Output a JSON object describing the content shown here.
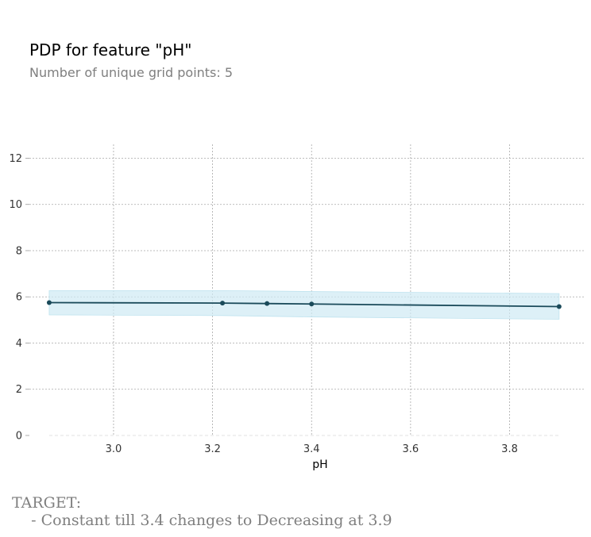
{
  "title": "PDP for feature \"pH\"",
  "subtitle": "Number of unique grid points: 5",
  "note": {
    "heading": "TARGET:",
    "line": "    - Constant till 3.4 changes to Decreasing at 3.9"
  },
  "chart_data": {
    "type": "line",
    "title": "PDP for feature \"pH\"",
    "xlabel": "pH",
    "ylabel": "",
    "xlim": [
      2.83,
      3.95
    ],
    "ylim": [
      0,
      12.6
    ],
    "xticks": [
      3.0,
      3.2,
      3.4,
      3.6,
      3.8
    ],
    "xtick_labels": [
      "3.0",
      "3.2",
      "3.4",
      "3.6",
      "3.8"
    ],
    "yticks": [
      0,
      2,
      4,
      6,
      8,
      10,
      12
    ],
    "ytick_labels": [
      "0",
      "2",
      "4",
      "6",
      "8",
      "10",
      "12"
    ],
    "grid": true,
    "series": [
      {
        "x": [
          2.87,
          3.22,
          3.31,
          3.4,
          3.9
        ],
        "y": [
          5.75,
          5.73,
          5.71,
          5.69,
          5.58
        ],
        "lower": [
          5.22,
          5.19,
          5.16,
          5.13,
          5.03
        ],
        "upper": [
          6.27,
          6.27,
          6.25,
          6.23,
          6.14
        ],
        "color": "#1a4a5a",
        "band_color": "#cfeaf3"
      }
    ]
  }
}
